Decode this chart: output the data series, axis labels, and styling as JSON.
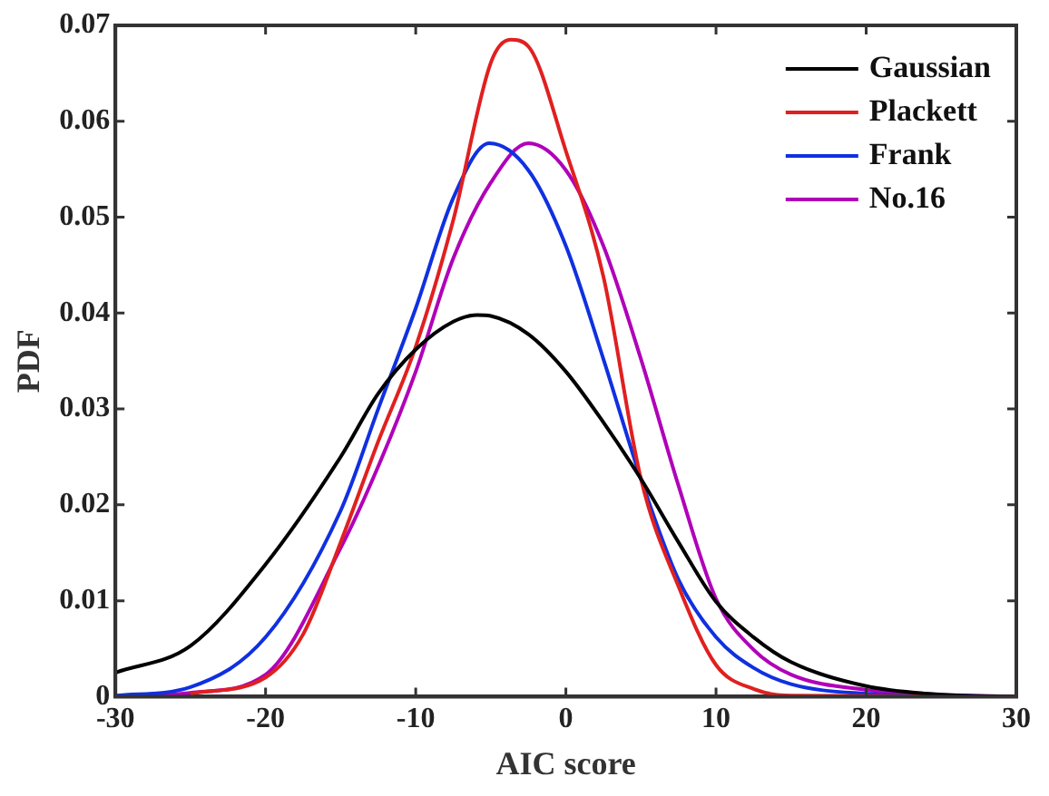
{
  "chart_data": {
    "type": "line",
    "xlabel": "AIC score",
    "ylabel": "PDF",
    "xlim": [
      -30,
      30
    ],
    "xticks": [
      -30,
      -20,
      -10,
      0,
      10,
      20,
      30
    ],
    "ylim": [
      0,
      0.07
    ],
    "yticks": [
      0,
      0.01,
      0.02,
      0.03,
      0.04,
      0.05,
      0.06,
      0.07
    ],
    "grid": false,
    "legend": "top right",
    "marker": "none",
    "line_style": "solid",
    "series": [
      {
        "name": "Gaussian",
        "color": "#000000",
        "x": [
          -30,
          -25,
          -20,
          -15,
          -12.5,
          -10,
          -7.5,
          -5.9,
          -5,
          -2.5,
          0,
          2.5,
          5,
          7.5,
          10,
          12.5,
          15,
          20,
          25,
          30
        ],
        "values": [
          0.0025,
          0.0053,
          0.0138,
          0.025,
          0.0316,
          0.0362,
          0.0391,
          0.0398,
          0.0397,
          0.0378,
          0.0339,
          0.0286,
          0.0227,
          0.0161,
          0.0099,
          0.0062,
          0.0036,
          0.0011,
          0.0002,
          0
        ]
      },
      {
        "name": "Plackett",
        "color": "#e02020",
        "x": [
          -25,
          -20,
          -17.5,
          -15,
          -12.5,
          -10,
          -7.5,
          -5,
          -3.7,
          -2.5,
          0,
          2.5,
          5,
          7.5,
          10,
          12.5,
          15,
          30
        ],
        "values": [
          0.0003,
          0.002,
          0.0065,
          0.0161,
          0.0266,
          0.0365,
          0.0497,
          0.0661,
          0.0685,
          0.0678,
          0.0569,
          0.0438,
          0.0227,
          0.0115,
          0.0033,
          0.0008,
          0.0001,
          0
        ]
      },
      {
        "name": "Frank",
        "color": "#1030e0",
        "x": [
          -30,
          -25,
          -20,
          -15,
          -12.5,
          -10,
          -7.5,
          -5.1,
          -2.5,
          0,
          2.5,
          5,
          7.5,
          10,
          12.5,
          15,
          20,
          25,
          30
        ],
        "values": [
          0.0001,
          0.001,
          0.0062,
          0.0194,
          0.03,
          0.0405,
          0.052,
          0.0577,
          0.0549,
          0.047,
          0.0352,
          0.0227,
          0.0122,
          0.0062,
          0.003,
          0.0013,
          0.0003,
          0.0001,
          0
        ]
      },
      {
        "name": "No.16",
        "color": "#b000b8",
        "x": [
          -30,
          -25,
          -20,
          -15,
          -12.5,
          -10,
          -7.5,
          -5,
          -2.5,
          0,
          2.5,
          5,
          7.5,
          10,
          12.5,
          15,
          20,
          25,
          30
        ],
        "values": [
          0,
          0.0004,
          0.0023,
          0.0155,
          0.024,
          0.0339,
          0.0457,
          0.0536,
          0.0577,
          0.0549,
          0.047,
          0.0352,
          0.022,
          0.0102,
          0.0049,
          0.0023,
          0.0007,
          0.0002,
          0
        ]
      }
    ]
  }
}
